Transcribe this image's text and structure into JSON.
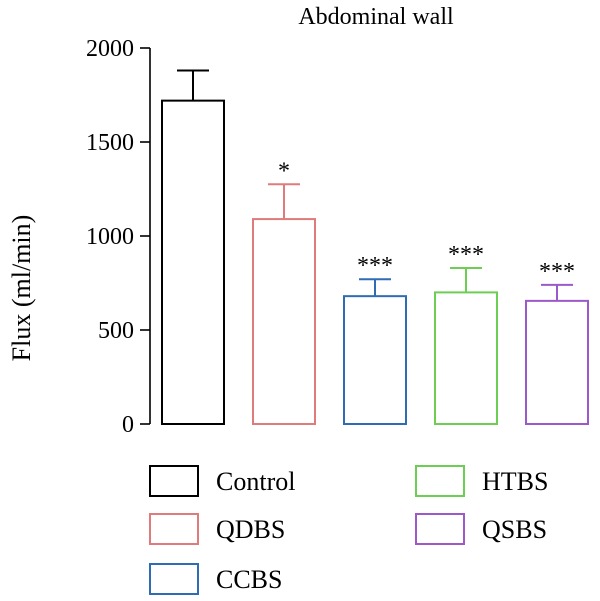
{
  "chart_data": {
    "type": "bar",
    "title": "Abdominal wall",
    "xlabel": "",
    "ylabel": "Flux (ml/min)",
    "ylim": [
      0,
      2000
    ],
    "yticks": [
      "0",
      "500",
      "1000",
      "1500",
      "2000"
    ],
    "grid": false,
    "legend_position": "bottom",
    "categories": [
      "Control",
      "QDBS",
      "CCBS",
      "HTBS",
      "QSBS"
    ],
    "values": [
      1720,
      1090,
      680,
      700,
      655
    ],
    "errors": [
      160,
      185,
      90,
      130,
      85
    ],
    "significance": [
      "",
      "*",
      "***",
      "***",
      "***"
    ],
    "colors": [
      "#000000",
      "#e07b7b",
      "#2e6db4",
      "#6ccf54",
      "#9b59c9"
    ],
    "legend": {
      "items": [
        "Control",
        "QDBS",
        "CCBS",
        "HTBS",
        "QSBS"
      ]
    }
  }
}
